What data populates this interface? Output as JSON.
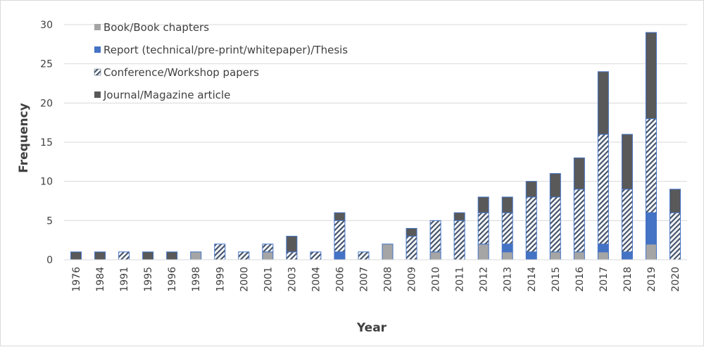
{
  "chart_data": {
    "type": "bar",
    "stacked": true,
    "xlabel": "Year",
    "ylabel": "Frequency",
    "ylim": [
      0,
      30
    ],
    "yticks": [
      0,
      5,
      10,
      15,
      20,
      25,
      30
    ],
    "grid": true,
    "legend_position": "top-left",
    "categories": [
      "1976",
      "1984",
      "1991",
      "1995",
      "1996",
      "1998",
      "1999",
      "2000",
      "2001",
      "2003",
      "2004",
      "2006",
      "2007",
      "2008",
      "2009",
      "2010",
      "2011",
      "2012",
      "2013",
      "2014",
      "2015",
      "2016",
      "2017",
      "2018",
      "2019",
      "2020"
    ],
    "series": [
      {
        "name": "Book/Book chapters",
        "color": "#a5a5a5",
        "pattern": "solid",
        "values": [
          0,
          0,
          0,
          0,
          0,
          1,
          0,
          0,
          1,
          0,
          0,
          0,
          0,
          2,
          0,
          1,
          0,
          2,
          1,
          0,
          1,
          1,
          1,
          0,
          2,
          0
        ]
      },
      {
        "name": "Report (technical/pre-print/whitepaper)/Thesis",
        "color": "#4472c4",
        "pattern": "solid",
        "values": [
          0,
          0,
          0,
          0,
          0,
          0,
          0,
          0,
          0,
          0,
          0,
          1,
          0,
          0,
          0,
          0,
          0,
          0,
          1,
          1,
          0,
          0,
          1,
          1,
          4,
          0
        ]
      },
      {
        "name": "Conference/Workshop papers",
        "color": "#44546a",
        "pattern": "hatch",
        "values": [
          0,
          0,
          1,
          0,
          0,
          0,
          2,
          1,
          1,
          1,
          1,
          4,
          1,
          0,
          3,
          4,
          5,
          4,
          4,
          7,
          7,
          8,
          14,
          8,
          12,
          6
        ]
      },
      {
        "name": "Journal/Magazine article",
        "color": "#595959",
        "pattern": "solid",
        "values": [
          1,
          1,
          0,
          1,
          1,
          0,
          0,
          0,
          0,
          2,
          0,
          1,
          0,
          0,
          1,
          0,
          1,
          2,
          2,
          2,
          3,
          4,
          8,
          7,
          11,
          3
        ]
      }
    ]
  }
}
